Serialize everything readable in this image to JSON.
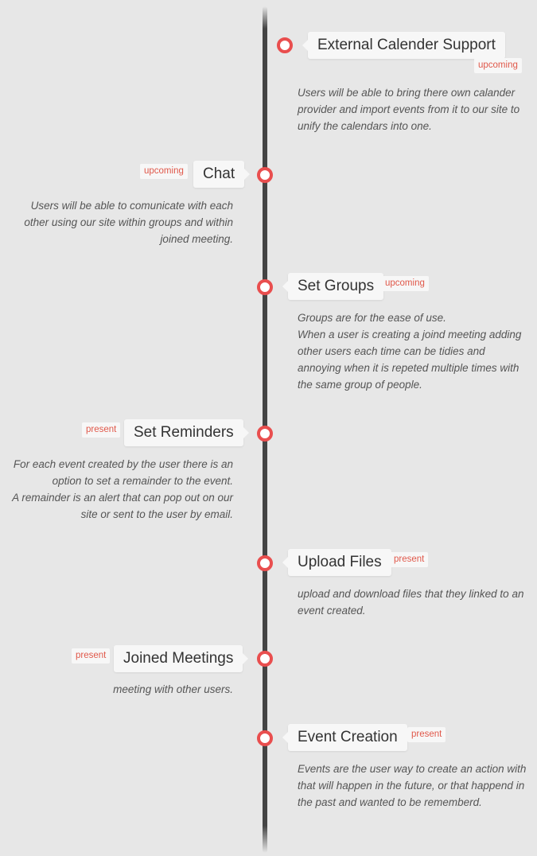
{
  "items": [
    {
      "title": "External Calender Support",
      "status": "upcoming",
      "description": "Users will be able to bring there own calander provider and import events from it to our site to unify the calendars into one."
    },
    {
      "title": "Chat",
      "status": "upcoming",
      "description": "Users will be able to comunicate with each other using our site within groups and within joined meeting."
    },
    {
      "title": "Set Groups",
      "status": "upcoming",
      "description_lines": [
        "Groups are for the ease of use.",
        "When a user is creating a joind meeting adding other users each time can be tidies and annoying when it is repeted multiple times with the same group of people."
      ]
    },
    {
      "title": "Set Reminders",
      "status": "present",
      "description_lines": [
        "For each event created by the user there is an option to set a remainder to the event.",
        "A remainder is an alert that can pop out on our site or sent to the user by email."
      ]
    },
    {
      "title": "Upload Files",
      "status": "present",
      "description": "upload and download files that they linked to an event created."
    },
    {
      "title": "Joined Meetings",
      "status": "present",
      "description": "meeting with other users."
    },
    {
      "title": "Event Creation",
      "status": "present",
      "description": "Events are the user way to create an action with that will happen in the future, or that happend in the past and wanted to be rememberd."
    }
  ],
  "colors": {
    "accent": "#e94e4e",
    "badge_text": "#e0584a",
    "line": "#444444",
    "background": "#e7e7e7"
  }
}
